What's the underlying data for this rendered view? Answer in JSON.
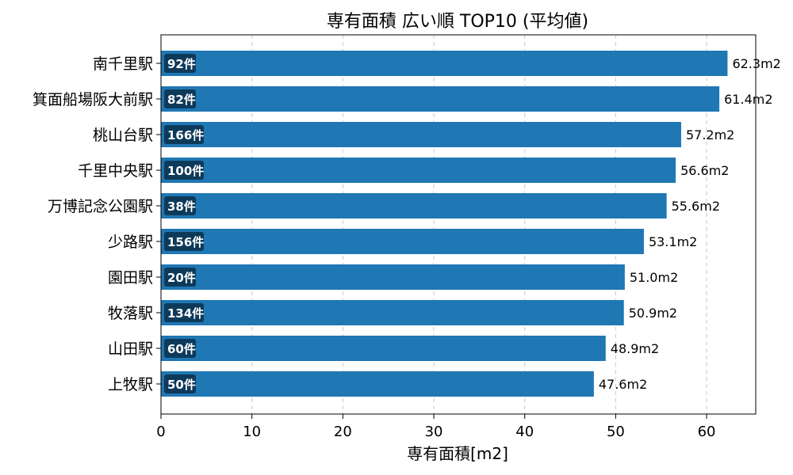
{
  "chart_data": {
    "type": "bar",
    "orientation": "horizontal",
    "title": "専有面積 広い順 TOP10 (平均値)",
    "xlabel": "専有面積[m2]",
    "ylabel": "",
    "xlim": [
      0,
      65.4
    ],
    "xticks": [
      0,
      10,
      20,
      30,
      40,
      50,
      60
    ],
    "grid": "x-dashed",
    "bar_color": "#1f77b4",
    "badge_color": "#0e3a5a",
    "categories": [
      "南千里駅",
      "箕面船場阪大前駅",
      "桃山台駅",
      "千里中央駅",
      "万博記念公園駅",
      "少路駅",
      "園田駅",
      "牧落駅",
      "山田駅",
      "上牧駅"
    ],
    "values": [
      62.3,
      61.4,
      57.2,
      56.6,
      55.6,
      53.1,
      51.0,
      50.9,
      48.9,
      47.6
    ],
    "value_labels": [
      "62.3m2",
      "61.4m2",
      "57.2m2",
      "56.6m2",
      "55.6m2",
      "53.1m2",
      "51.0m2",
      "50.9m2",
      "48.9m2",
      "47.6m2"
    ],
    "counts": [
      "92件",
      "82件",
      "166件",
      "100件",
      "38件",
      "156件",
      "20件",
      "134件",
      "60件",
      "50件"
    ]
  }
}
